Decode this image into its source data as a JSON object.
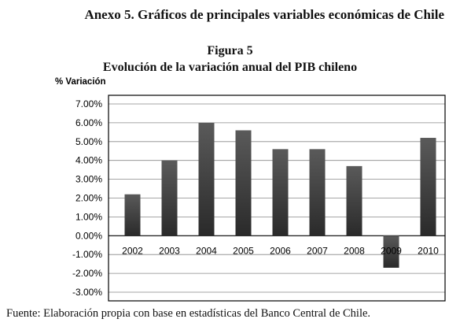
{
  "header": {
    "annex_title": "Anexo 5. Gráficos de principales variables económicas de Chile",
    "figure_number": "Figura 5",
    "figure_title": "Evolución de la variación anual del PIB chileno"
  },
  "footer": {
    "source": "Fuente: Elaboración propia con base en estadísticas del Banco Central de Chile."
  },
  "chart_data": {
    "type": "bar",
    "title": "Evolución de la variación anual del PIB chileno",
    "ylabel": "% Variación",
    "xlabel": "",
    "categories": [
      "2002",
      "2003",
      "2004",
      "2005",
      "2006",
      "2007",
      "2008",
      "2009",
      "2010"
    ],
    "values": [
      2.2,
      4.0,
      6.0,
      5.6,
      4.6,
      4.6,
      3.7,
      -1.7,
      5.2
    ],
    "value_unit": "%",
    "ylim": [
      -3.0,
      7.0
    ],
    "yticks": [
      "7.00%",
      "6.00%",
      "5.00%",
      "4.00%",
      "3.00%",
      "2.00%",
      "1.00%",
      "0.00%",
      "-1.00%",
      "-2.00%",
      "-3.00%"
    ],
    "ytick_values": [
      7,
      6,
      5,
      4,
      3,
      2,
      1,
      0,
      -1,
      -2,
      -3
    ],
    "grid": true,
    "legend": "none",
    "colors": {
      "bar_top": "#5a5a5a",
      "bar_bottom": "#2a2a2a",
      "frame": "#000000",
      "grid": "#888888"
    }
  }
}
